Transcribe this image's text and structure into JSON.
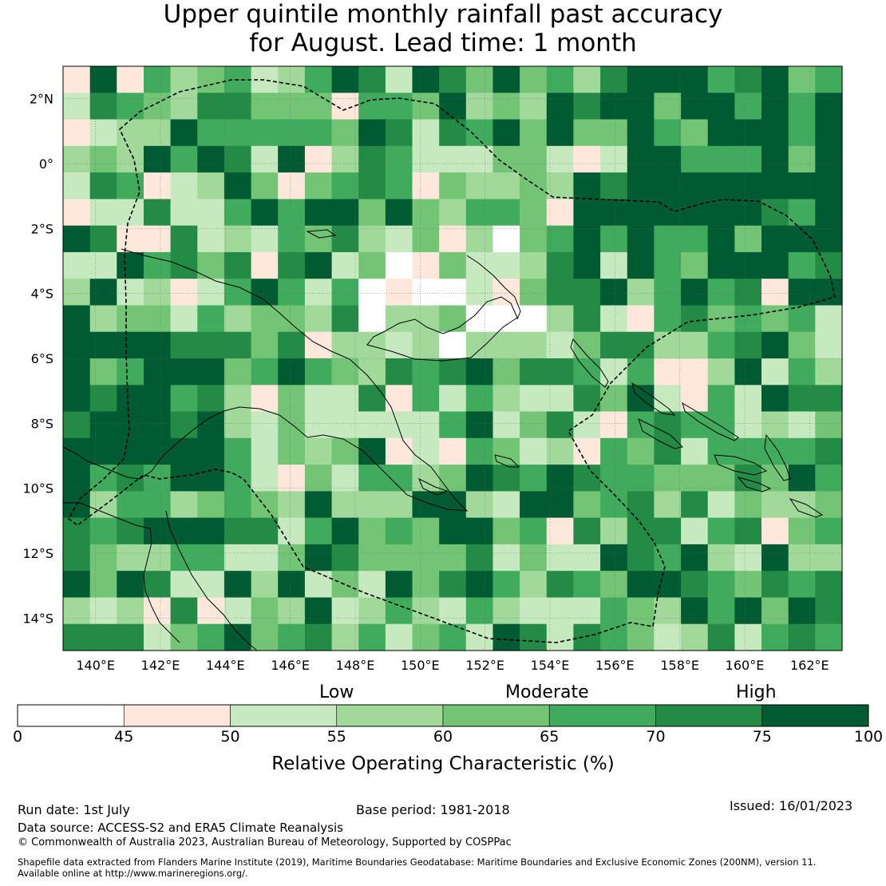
{
  "title": {
    "line1": "Upper quintile monthly rainfall past accuracy",
    "line2": "for August. Lead time: 1 month"
  },
  "map": {
    "lon_range": [
      139,
      163
    ],
    "lat_range": [
      -15,
      3
    ],
    "lon_ticks": [
      "140°E",
      "142°E",
      "144°E",
      "146°E",
      "148°E",
      "150°E",
      "152°E",
      "154°E",
      "156°E",
      "158°E",
      "160°E",
      "162°E"
    ],
    "lat_ticks": [
      "2°N",
      "0°",
      "2°S",
      "4°S",
      "6°S",
      "8°S",
      "10°S",
      "12°S",
      "14°S"
    ],
    "grid": true,
    "projection": "equirectangular",
    "overlays": [
      "coastlines",
      "maritime-boundary-dashed"
    ]
  },
  "colorbar": {
    "levels": [
      "Low",
      "Moderate",
      "High"
    ],
    "ticks": [
      "0",
      "45",
      "50",
      "55",
      "60",
      "65",
      "70",
      "75",
      "100"
    ],
    "bins": [
      [
        0,
        45
      ],
      [
        45,
        50
      ],
      [
        50,
        55
      ],
      [
        55,
        60
      ],
      [
        60,
        65
      ],
      [
        65,
        70
      ],
      [
        70,
        75
      ],
      [
        75,
        100
      ]
    ],
    "colors": [
      "#ffffff",
      "#fee8dc",
      "#c7e9c0",
      "#a1d99b",
      "#74c476",
      "#41ab5d",
      "#238b45",
      "#005a32"
    ],
    "label": "Relative Operating Characteristic (%)"
  },
  "footer": {
    "run_date": "Run date: 1st July",
    "base_period": "Base period: 1981-2018",
    "issued": "Issued: 16/01/2023",
    "data_source": "Data source: ACCESS-S2 and ERA5 Climate Reanalysis",
    "copyright": "© Commonwealth of Australia 2023, Australian Bureau of Meteorology, Supported by COSPPac",
    "shapefile_line1": "Shapefile data extracted from Flanders Marine Institute (2019), Maritime Boundaries Geodatabase: Maritime Boundaries and Exclusive Economic Zones (200NM), version 11.",
    "shapefile_line2": "Available online at http://www.marineregions.org/."
  }
}
